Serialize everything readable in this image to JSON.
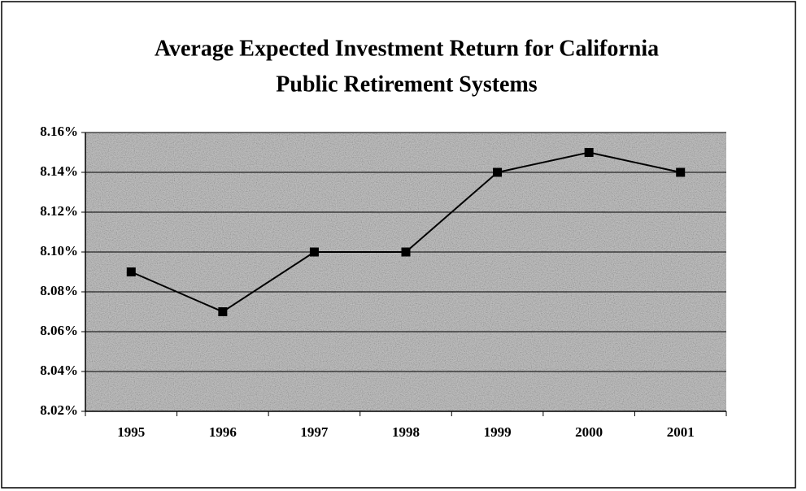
{
  "chart_data": {
    "type": "line",
    "title": [
      "Average Expected Investment Return for California",
      "Public Retirement Systems"
    ],
    "categories": [
      "1995",
      "1996",
      "1997",
      "1998",
      "1999",
      "2000",
      "2001"
    ],
    "values": [
      8.09,
      8.07,
      8.1,
      8.1,
      8.14,
      8.15,
      8.14
    ],
    "color": "#000000",
    "ylim": [
      8.02,
      8.16
    ],
    "yticks": [
      {
        "value": 8.02,
        "label": "8.02%"
      },
      {
        "value": 8.04,
        "label": "8.04%"
      },
      {
        "value": 8.06,
        "label": "8.06%"
      },
      {
        "value": 8.08,
        "label": "8.08%"
      },
      {
        "value": 8.1,
        "label": "8.10%"
      },
      {
        "value": 8.12,
        "label": "8.12%"
      },
      {
        "value": 8.14,
        "label": "8.14%"
      },
      {
        "value": 8.16,
        "label": "8.16%"
      }
    ],
    "grid": true
  }
}
